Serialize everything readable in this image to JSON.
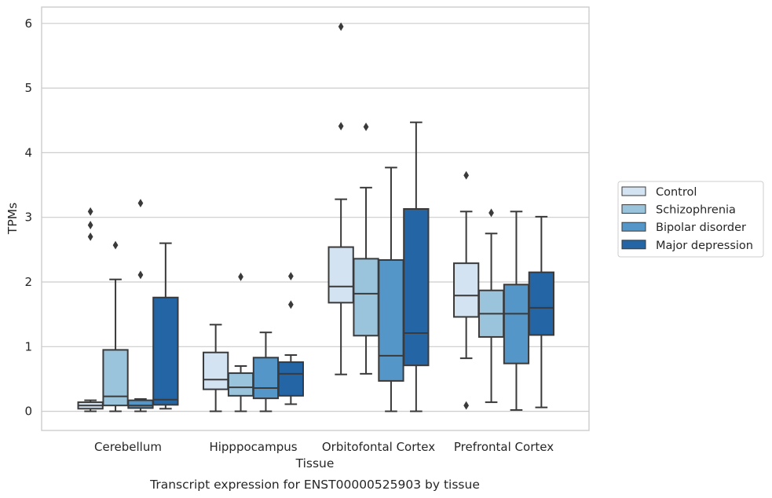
{
  "caption": "Transcript expression for ENST00000525903 by tissue",
  "chart_data": {
    "type": "box",
    "xlabel": "Tissue",
    "ylabel": "TPMs",
    "ylim": [
      -0.3,
      6.25
    ],
    "yticks": [
      0,
      1,
      2,
      3,
      4,
      5,
      6
    ],
    "grid": true,
    "legend_position": "right",
    "categories": [
      "Cerebellum",
      "Hipppocampus",
      "Orbitofontal Cortex",
      "Prefrontal Cortex"
    ],
    "series": [
      {
        "name": "Control",
        "color": "#d4e3f2",
        "boxes": [
          {
            "whislo": 0.0,
            "q1": 0.04,
            "med": 0.09,
            "q3": 0.14,
            "whishi": 0.17,
            "fliers": [
              2.7,
              2.88,
              3.09
            ]
          },
          {
            "whislo": 0.0,
            "q1": 0.34,
            "med": 0.49,
            "q3": 0.91,
            "whishi": 1.34,
            "fliers": []
          },
          {
            "whislo": 0.57,
            "q1": 1.68,
            "med": 1.93,
            "q3": 2.54,
            "whishi": 3.28,
            "fliers": [
              4.41,
              5.95
            ]
          },
          {
            "whislo": 0.82,
            "q1": 1.46,
            "med": 1.79,
            "q3": 2.29,
            "whishi": 3.09,
            "fliers": [
              0.09,
              3.65
            ]
          }
        ]
      },
      {
        "name": "Schizophrenia",
        "color": "#9ac3dc",
        "boxes": [
          {
            "whislo": 0.0,
            "q1": 0.09,
            "med": 0.23,
            "q3": 0.95,
            "whishi": 2.04,
            "fliers": [
              2.57
            ]
          },
          {
            "whislo": 0.0,
            "q1": 0.24,
            "med": 0.37,
            "q3": 0.59,
            "whishi": 0.7,
            "fliers": [
              2.08
            ]
          },
          {
            "whislo": 0.58,
            "q1": 1.17,
            "med": 1.82,
            "q3": 2.36,
            "whishi": 3.46,
            "fliers": [
              4.4
            ]
          },
          {
            "whislo": 0.14,
            "q1": 1.15,
            "med": 1.51,
            "q3": 1.87,
            "whishi": 2.75,
            "fliers": [
              3.07
            ]
          }
        ]
      },
      {
        "name": "Bipolar disorder",
        "color": "#5596c8",
        "boxes": [
          {
            "whislo": 0.0,
            "q1": 0.05,
            "med": 0.09,
            "q3": 0.17,
            "whishi": 0.19,
            "fliers": [
              2.11,
              3.22
            ]
          },
          {
            "whislo": 0.0,
            "q1": 0.2,
            "med": 0.36,
            "q3": 0.83,
            "whishi": 1.22,
            "fliers": []
          },
          {
            "whislo": 0.0,
            "q1": 0.47,
            "med": 0.86,
            "q3": 2.34,
            "whishi": 3.77,
            "fliers": []
          },
          {
            "whislo": 0.02,
            "q1": 0.74,
            "med": 1.51,
            "q3": 1.96,
            "whishi": 3.09,
            "fliers": []
          }
        ]
      },
      {
        "name": "Major depression",
        "color": "#2465a6",
        "boxes": [
          {
            "whislo": 0.04,
            "q1": 0.1,
            "med": 0.18,
            "q3": 1.76,
            "whishi": 2.6,
            "fliers": []
          },
          {
            "whislo": 0.11,
            "q1": 0.24,
            "med": 0.58,
            "q3": 0.76,
            "whishi": 0.87,
            "fliers": [
              1.65,
              2.09
            ]
          },
          {
            "whislo": 0.0,
            "q1": 0.71,
            "med": 1.21,
            "q3": 3.13,
            "whishi": 4.47,
            "fliers": []
          },
          {
            "whislo": 0.06,
            "q1": 1.18,
            "med": 1.6,
            "q3": 2.15,
            "whishi": 3.01,
            "fliers": []
          }
        ]
      }
    ]
  }
}
